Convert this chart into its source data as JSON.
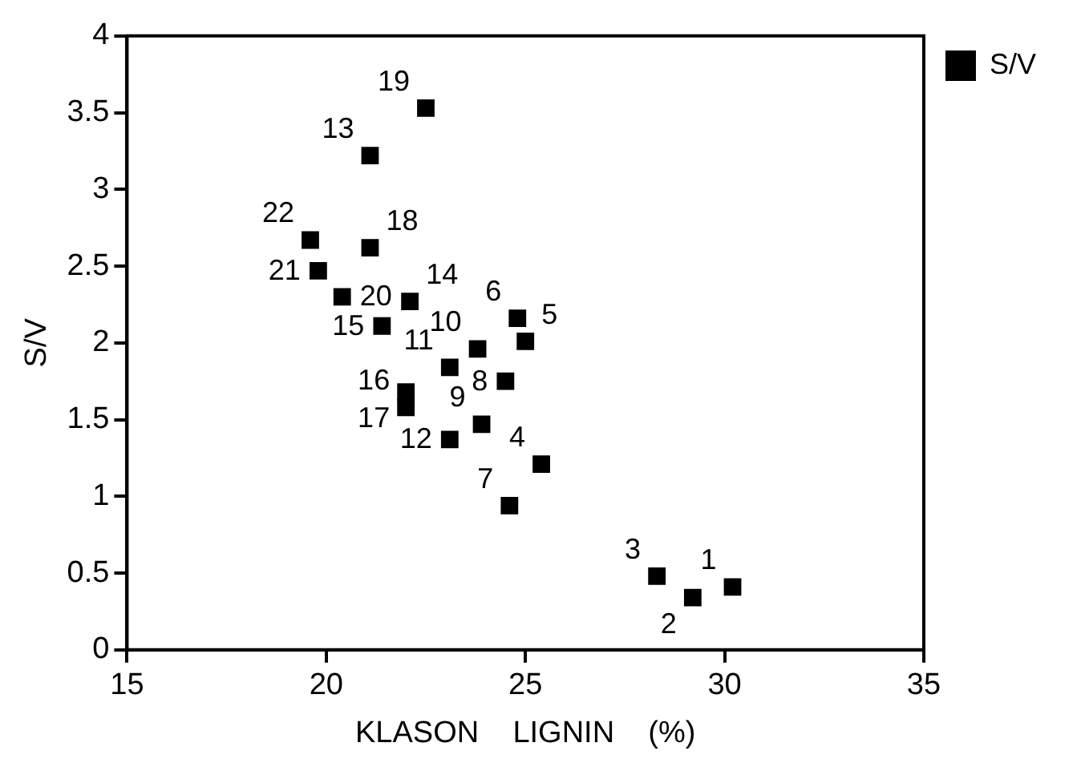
{
  "chart_data": {
    "type": "scatter",
    "xlabel": "KLASON    LIGNIN    (%)",
    "ylabel": "S/V",
    "xlim": [
      15,
      35
    ],
    "xticks": [
      15,
      20,
      25,
      30,
      35
    ],
    "ylim": [
      0,
      4
    ],
    "yticks": [
      0,
      0.5,
      1,
      1.5,
      2,
      2.5,
      3,
      3.5,
      4
    ],
    "grid": false,
    "legend": "top right",
    "marker": "square",
    "series": [
      {
        "name": "S/V",
        "color": "#000000",
        "x": [
          30.2,
          29.2,
          28.3,
          25.4,
          25.0,
          24.8,
          24.6,
          24.5,
          23.9,
          23.8,
          23.1,
          23.1,
          21.1,
          22.1,
          21.4,
          22.0,
          22.0,
          21.1,
          22.5,
          20.4,
          19.8,
          19.6
        ],
        "values": [
          0.41,
          0.34,
          0.48,
          1.21,
          2.01,
          2.16,
          0.94,
          1.75,
          1.47,
          1.96,
          1.84,
          1.37,
          3.22,
          2.27,
          2.11,
          1.58,
          1.68,
          2.62,
          3.53,
          2.3,
          2.47,
          2.67
        ]
      }
    ],
    "annotations": [
      {
        "text": "1",
        "x": 30.2,
        "y": 0.41
      },
      {
        "text": "2",
        "x": 29.2,
        "y": 0.34
      },
      {
        "text": "3",
        "x": 28.3,
        "y": 0.48
      },
      {
        "text": "4",
        "x": 25.4,
        "y": 1.21
      },
      {
        "text": "5",
        "x": 25.0,
        "y": 2.01
      },
      {
        "text": "6",
        "x": 24.8,
        "y": 2.16
      },
      {
        "text": "7",
        "x": 24.6,
        "y": 0.94
      },
      {
        "text": "8",
        "x": 24.5,
        "y": 1.75
      },
      {
        "text": "9",
        "x": 23.9,
        "y": 1.47
      },
      {
        "text": "10",
        "x": 23.8,
        "y": 1.96
      },
      {
        "text": "11",
        "x": 23.1,
        "y": 1.84
      },
      {
        "text": "12",
        "x": 23.1,
        "y": 1.37
      },
      {
        "text": "13",
        "x": 21.1,
        "y": 3.22
      },
      {
        "text": "14",
        "x": 22.1,
        "y": 2.27
      },
      {
        "text": "15",
        "x": 21.4,
        "y": 2.11
      },
      {
        "text": "16",
        "x": 22.0,
        "y": 1.58
      },
      {
        "text": "17",
        "x": 22.0,
        "y": 1.68
      },
      {
        "text": "18",
        "x": 21.1,
        "y": 2.62
      },
      {
        "text": "19",
        "x": 22.5,
        "y": 3.53
      },
      {
        "text": "20",
        "x": 20.4,
        "y": 2.3
      },
      {
        "text": "21",
        "x": 19.8,
        "y": 2.47
      },
      {
        "text": "22",
        "x": 19.6,
        "y": 2.67
      }
    ]
  }
}
